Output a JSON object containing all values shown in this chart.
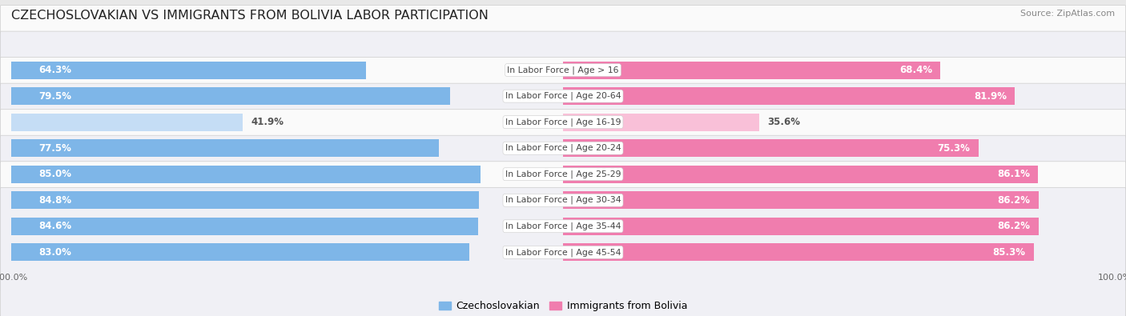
{
  "title": "CZECHOSLOVAKIAN VS IMMIGRANTS FROM BOLIVIA LABOR PARTICIPATION",
  "source": "Source: ZipAtlas.com",
  "categories": [
    "In Labor Force | Age > 16",
    "In Labor Force | Age 20-64",
    "In Labor Force | Age 16-19",
    "In Labor Force | Age 20-24",
    "In Labor Force | Age 25-29",
    "In Labor Force | Age 30-34",
    "In Labor Force | Age 35-44",
    "In Labor Force | Age 45-54"
  ],
  "czech_values": [
    64.3,
    79.5,
    41.9,
    77.5,
    85.0,
    84.8,
    84.6,
    83.0
  ],
  "bolivia_values": [
    68.4,
    81.9,
    35.6,
    75.3,
    86.1,
    86.2,
    86.2,
    85.3
  ],
  "czech_color": "#7EB6E8",
  "czech_color_light": "#C5DDF5",
  "bolivia_color": "#F07DAE",
  "bolivia_color_light": "#F9C0D8",
  "row_bg_even": "#FAFAFA",
  "row_bg_odd": "#F0F0F5",
  "row_border": "#CCCCCC",
  "background_color": "#E8E8E8",
  "label_white": "#FFFFFF",
  "label_dark": "#555555",
  "category_color": "#444444",
  "axis_tick_color": "#666666",
  "legend_czech": "Czechoslovakian",
  "legend_bolivia": "Immigrants from Bolivia",
  "title_fontsize": 11.5,
  "source_fontsize": 8,
  "label_fontsize": 8.5,
  "category_fontsize": 7.8,
  "axis_label_fontsize": 8,
  "legend_fontsize": 9
}
